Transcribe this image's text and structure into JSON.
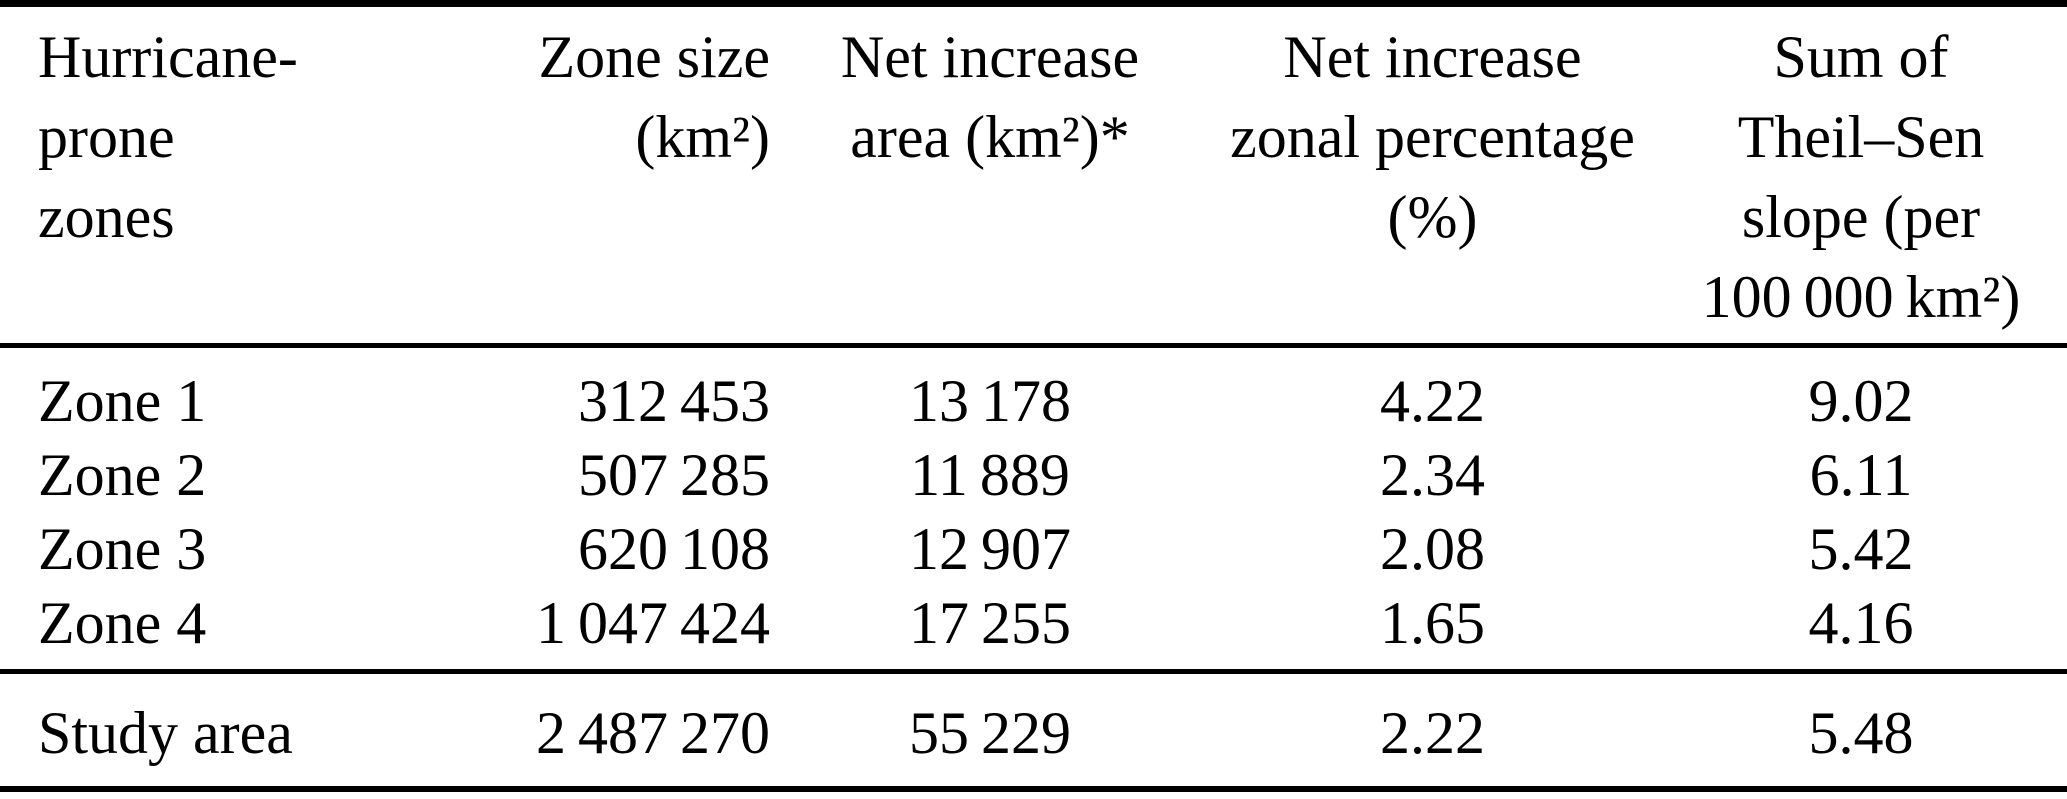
{
  "figure": {
    "kind": "academic-paper-table",
    "colors": {
      "text": "#000000",
      "background": "#ffffff",
      "rule": "#000000"
    }
  },
  "table": {
    "columns": [
      {
        "id": "zone",
        "label": "Hurricane-prone\nzones",
        "align": "left"
      },
      {
        "id": "size",
        "label": "Zone size\n(km²)",
        "align": "right"
      },
      {
        "id": "net_area",
        "label": "Net increase\narea (km²)*",
        "align": "center"
      },
      {
        "id": "net_pct",
        "label": "Net increase\nzonal percentage\n(%)",
        "align": "center"
      },
      {
        "id": "theil",
        "label": "Sum of\nTheil–Sen\nslope (per\n100 000 km²)",
        "align": "center"
      }
    ],
    "rows": [
      {
        "zone": "Zone 1",
        "size": "312 453",
        "net_area": "13 178",
        "net_pct": "4.22",
        "theil": "9.02"
      },
      {
        "zone": "Zone 2",
        "size": "507 285",
        "net_area": "11 889",
        "net_pct": "2.34",
        "theil": "6.11"
      },
      {
        "zone": "Zone 3",
        "size": "620 108",
        "net_area": "12 907",
        "net_pct": "2.08",
        "theil": "5.42"
      },
      {
        "zone": "Zone 4",
        "size": "1 047 424",
        "net_area": "17 255",
        "net_pct": "1.65",
        "theil": "4.16"
      }
    ],
    "footer": {
      "zone": "Study area",
      "size": "2 487 270",
      "net_area": "55 229",
      "net_pct": "2.22",
      "theil": "5.48"
    }
  },
  "chart_data": {
    "type": "table",
    "title": "",
    "columns": [
      "Hurricane-prone zones",
      "Zone size (km2)",
      "Net increase area (km2)*",
      "Net increase zonal percentage (%)",
      "Sum of Theil-Sen slope (per 100 000 km2)"
    ],
    "rows": [
      [
        "Zone 1",
        312453,
        13178,
        4.22,
        9.02
      ],
      [
        "Zone 2",
        507285,
        11889,
        2.34,
        6.11
      ],
      [
        "Zone 3",
        620108,
        12907,
        2.08,
        5.42
      ],
      [
        "Zone 4",
        1047424,
        17255,
        1.65,
        4.16
      ],
      [
        "Study area",
        2487270,
        55229,
        2.22,
        5.48
      ]
    ]
  }
}
